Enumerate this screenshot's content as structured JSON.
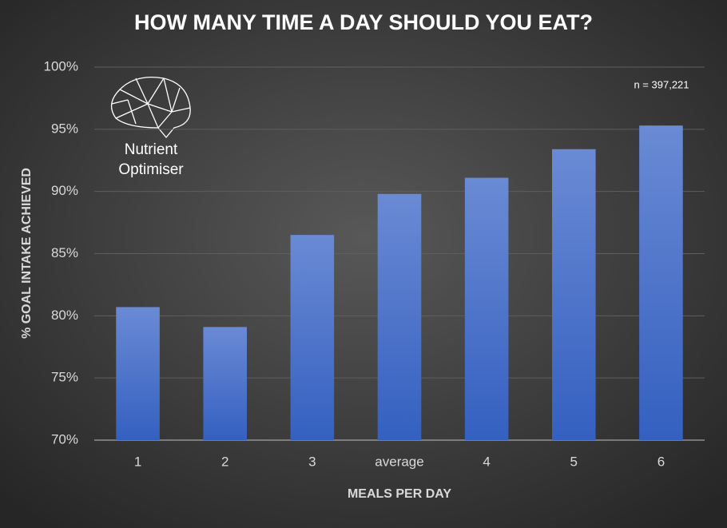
{
  "chart_data": {
    "type": "bar",
    "title": "HOW MANY TIME A DAY SHOULD YOU EAT?",
    "x_label": "MEALS PER DAY",
    "y_label": "% GOAL INTAKE ACHIEVED",
    "annotation": "n = 397,221",
    "logo_text": [
      "Nutrient",
      "Optimiser"
    ],
    "categories": [
      "1",
      "2",
      "3",
      "average",
      "4",
      "5",
      "6"
    ],
    "values": [
      80.7,
      79.1,
      86.5,
      89.8,
      91.1,
      93.4,
      95.3
    ],
    "color": "#4a72c9",
    "ylim": [
      70,
      100
    ],
    "yticks": [
      {
        "value": 70,
        "label": "70%"
      },
      {
        "value": 75,
        "label": "75%"
      },
      {
        "value": 80,
        "label": "80%"
      },
      {
        "value": 85,
        "label": "85%"
      },
      {
        "value": 90,
        "label": "90%"
      },
      {
        "value": 95,
        "label": "95%"
      },
      {
        "value": 100,
        "label": "100%"
      }
    ],
    "grid": true
  }
}
